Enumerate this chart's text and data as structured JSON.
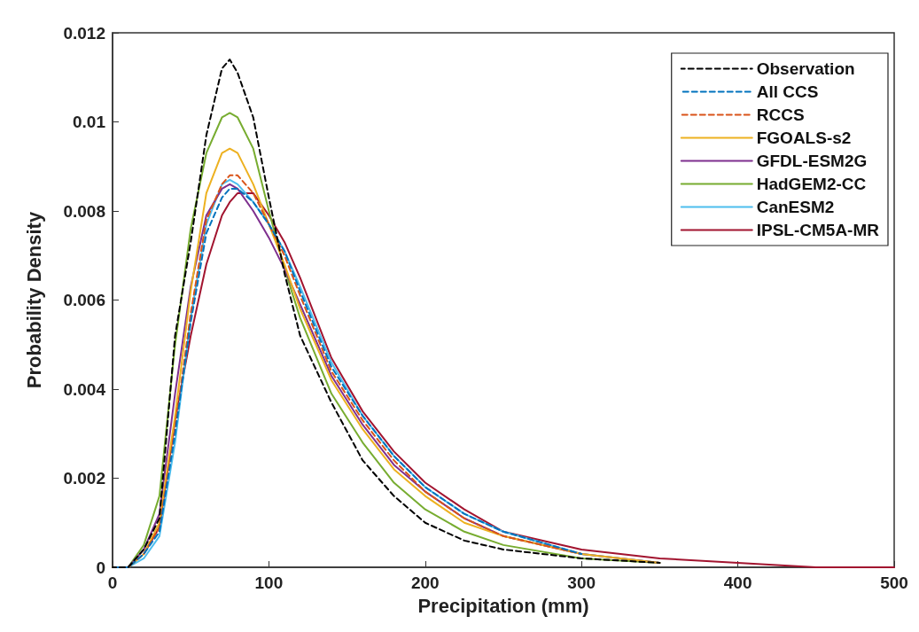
{
  "chart_data": {
    "type": "line",
    "xlabel": "Precipitation (mm)",
    "ylabel": "Probability Density",
    "x": [
      0,
      10,
      20,
      30,
      40,
      50,
      60,
      70,
      75,
      80,
      90,
      100,
      110,
      120,
      140,
      160,
      180,
      200,
      225,
      250,
      300,
      350,
      400,
      450,
      500
    ],
    "xlim": [
      0,
      500
    ],
    "xticks": [
      0,
      100,
      200,
      300,
      400,
      500
    ],
    "ylim": [
      0,
      0.012
    ],
    "yticks": [
      0,
      0.002,
      0.004,
      0.006,
      0.008,
      0.01,
      0.012
    ],
    "grid": false,
    "legend": "top right",
    "marker": "none",
    "series": [
      {
        "name": "Observation",
        "color": "#000000",
        "line_style": "dashed",
        "values": [
          0,
          0,
          0.0004,
          0.0011,
          0.0052,
          0.0073,
          0.0097,
          0.0112,
          0.0114,
          0.0111,
          0.0101,
          0.0083,
          0.0066,
          0.0052,
          0.0037,
          0.0024,
          0.0016,
          0.001,
          0.0006,
          0.0004,
          0.0002,
          0.0001,
          null,
          null,
          null
        ]
      },
      {
        "name": "All CCS",
        "color": "#0072bd",
        "line_style": "dashed",
        "values": [
          0,
          0,
          0.0003,
          0.0008,
          0.003,
          0.0055,
          0.0075,
          0.0083,
          0.0085,
          0.0085,
          0.0082,
          0.0077,
          0.0071,
          0.0062,
          0.0045,
          0.0034,
          0.0025,
          0.0018,
          0.0012,
          0.0008,
          0.0003,
          null,
          null,
          null,
          null
        ]
      },
      {
        "name": "RCCS",
        "color": "#d95319",
        "line_style": "dashed",
        "values": [
          0,
          0,
          0.0003,
          0.0009,
          0.0031,
          0.0057,
          0.0078,
          0.0086,
          0.0088,
          0.0088,
          0.0084,
          0.0077,
          0.007,
          0.0061,
          0.0044,
          0.0033,
          0.0024,
          0.0017,
          0.0011,
          0.0007,
          0.0003,
          null,
          null,
          null,
          null
        ]
      },
      {
        "name": "FGOALS-s2",
        "color": "#edb120",
        "line_style": "solid",
        "values": [
          0,
          0,
          0.0003,
          0.001,
          0.0034,
          0.0062,
          0.0084,
          0.0093,
          0.0094,
          0.0093,
          0.0086,
          0.0077,
          0.0068,
          0.0058,
          0.0042,
          0.0031,
          0.0022,
          0.0016,
          0.001,
          0.0007,
          0.0003,
          0.0001,
          null,
          null,
          null
        ]
      },
      {
        "name": "GFDL-ESM2G",
        "color": "#7e2f8e",
        "line_style": "solid",
        "values": [
          0,
          0,
          0.0004,
          0.0012,
          0.0039,
          0.0063,
          0.0079,
          0.0085,
          0.0086,
          0.0085,
          0.008,
          0.0074,
          0.0067,
          0.0059,
          0.0043,
          0.0032,
          0.0023,
          0.0017,
          0.0011,
          0.0007,
          0.0003,
          0.0001,
          null,
          null,
          null
        ]
      },
      {
        "name": "HadGEM2-CC",
        "color": "#77ac30",
        "line_style": "solid",
        "values": [
          0,
          0,
          0.0005,
          0.0016,
          0.005,
          0.0076,
          0.0093,
          0.0101,
          0.0102,
          0.0101,
          0.0094,
          0.008,
          0.0067,
          0.0056,
          0.0039,
          0.0028,
          0.0019,
          0.0013,
          0.0008,
          0.0005,
          0.0002,
          0.0001,
          null,
          null,
          null
        ]
      },
      {
        "name": "CanESM2",
        "color": "#4dbeee",
        "line_style": "solid",
        "values": [
          0,
          0,
          0.0002,
          0.0007,
          0.0028,
          0.0056,
          0.0077,
          0.0086,
          0.0087,
          0.0086,
          0.0082,
          0.0077,
          0.0071,
          0.0063,
          0.0046,
          0.0034,
          0.0025,
          0.0018,
          0.0012,
          0.0008,
          0.0003,
          0.0001,
          null,
          null,
          null
        ]
      },
      {
        "name": "IPSL-CM5A-MR",
        "color": "#a2142f",
        "line_style": "solid",
        "values": [
          null,
          null,
          0.0003,
          0.0009,
          0.0033,
          0.0052,
          0.0068,
          0.0079,
          0.0082,
          0.0084,
          0.0084,
          0.0079,
          0.0073,
          0.0065,
          0.0047,
          0.0035,
          0.0026,
          0.0019,
          0.0013,
          0.0008,
          0.0004,
          0.0002,
          0.0001,
          0,
          0
        ]
      }
    ]
  }
}
